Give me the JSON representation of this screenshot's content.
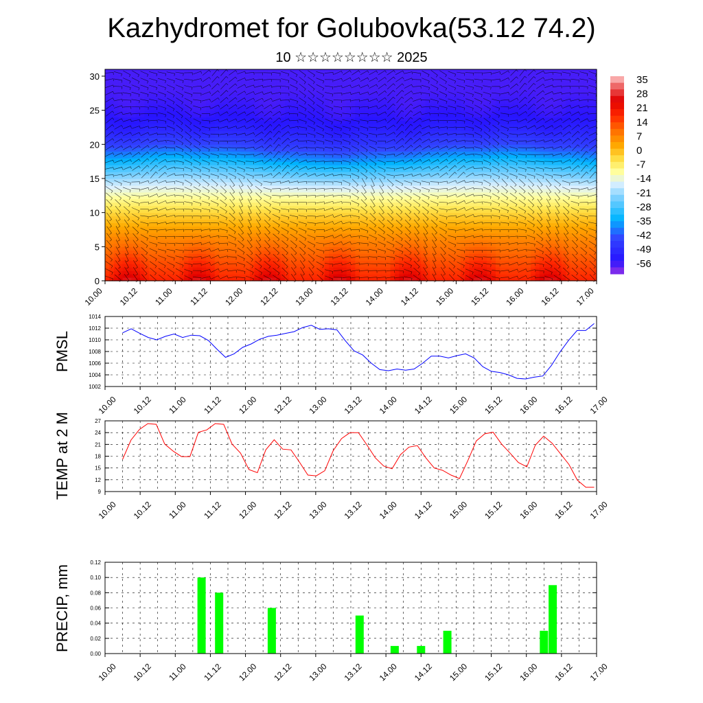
{
  "title": "Kazhydromet for Golubovka(53.12 74.2)",
  "subtitle": "10 ☆☆☆☆☆☆☆☆ 2025",
  "chart_data": [
    {
      "type": "heatmap",
      "title": "",
      "xlabel": "",
      "ylabel": "",
      "x_ticks": [
        "10.00",
        "10.12",
        "11.00",
        "11.12",
        "12.00",
        "12.12",
        "13.00",
        "13.12",
        "14.00",
        "14.12",
        "15.00",
        "15.12",
        "16.00",
        "16.12",
        "17.00"
      ],
      "y_ticks": [
        0,
        5,
        10,
        15,
        20,
        25,
        30
      ],
      "ylim": [
        0,
        31
      ],
      "description_values": {
        "levels": [
          0,
          2,
          4,
          6,
          8,
          10,
          12,
          14,
          16,
          18,
          20,
          22,
          24,
          26,
          28,
          30
        ],
        "profile_day": [
          32,
          24,
          17,
          11,
          5,
          -1,
          -8,
          -16,
          -26,
          -37,
          -47,
          -54,
          -57,
          -58,
          -58,
          -58
        ],
        "profile_night": [
          22,
          18,
          14,
          10,
          5,
          -1,
          -8,
          -16,
          -26,
          -36,
          -46,
          -52,
          -56,
          -57,
          -58,
          -58
        ]
      },
      "colorbar": {
        "labels": [
          35,
          28,
          21,
          14,
          7,
          0,
          -7,
          -14,
          -21,
          -28,
          -35,
          -42,
          -49,
          -56
        ],
        "range": [
          -63,
          42
        ]
      },
      "wind_barbs": true
    },
    {
      "type": "line",
      "ylabel": "PMSL",
      "ylim": [
        1002,
        1014
      ],
      "y_ticks": [
        1002,
        1004,
        1006,
        1008,
        1010,
        1012,
        1014
      ],
      "x_ticks": [
        "10.00",
        "10.12",
        "11.00",
        "11.12",
        "12.00",
        "12.12",
        "13.00",
        "13.12",
        "14.00",
        "14.12",
        "15.00",
        "15.12",
        "16.00",
        "16.12",
        "17.00"
      ],
      "grid": true,
      "series": [
        {
          "color": "#0000ff",
          "values": [
            1011.2,
            1011.9,
            1011.1,
            1010.4,
            1010.0,
            1010.6,
            1011.0,
            1010.4,
            1010.8,
            1010.7,
            1009.9,
            1008.4,
            1007.0,
            1007.6,
            1008.7,
            1009.3,
            1010.1,
            1010.6,
            1010.8,
            1011.1,
            1011.4,
            1012.1,
            1012.5,
            1011.8,
            1011.9,
            1011.7,
            1009.8,
            1008.1,
            1007.4,
            1006.0,
            1004.9,
            1004.7,
            1005.0,
            1004.8,
            1005.0,
            1006.0,
            1007.2,
            1007.2,
            1006.9,
            1007.3,
            1007.6,
            1006.9,
            1005.4,
            1004.6,
            1004.4,
            1004.0,
            1003.4,
            1003.3,
            1003.6,
            1003.8,
            1005.6,
            1007.9,
            1009.9,
            1011.6,
            1011.6,
            1012.8
          ]
        }
      ]
    },
    {
      "type": "line",
      "ylabel": "TEMP at 2 M",
      "ylim": [
        9,
        27
      ],
      "y_ticks": [
        9,
        12,
        15,
        18,
        21,
        24,
        27
      ],
      "x_ticks": [
        "10.00",
        "10.12",
        "11.00",
        "11.12",
        "12.00",
        "12.12",
        "13.00",
        "13.12",
        "14.00",
        "14.12",
        "15.00",
        "15.12",
        "16.00",
        "16.12",
        "17.00"
      ],
      "grid": true,
      "series": [
        {
          "color": "#ff0000",
          "values": [
            17.2,
            22.1,
            24.8,
            26.3,
            26.1,
            21.1,
            19.3,
            17.9,
            17.9,
            24.1,
            24.7,
            26.3,
            26.1,
            21.1,
            18.8,
            14.6,
            13.8,
            19.6,
            22.2,
            19.8,
            19.6,
            16.5,
            13.2,
            13.0,
            14.3,
            19.4,
            22.5,
            24.0,
            24.0,
            20.9,
            17.6,
            15.5,
            14.8,
            18.4,
            20.3,
            20.7,
            17.6,
            15.0,
            14.4,
            13.2,
            12.3,
            16.9,
            21.9,
            23.7,
            24.1,
            21.1,
            18.8,
            16.4,
            15.3,
            20.8,
            23.1,
            21.3,
            18.6,
            15.9,
            11.9,
            10.1,
            10.1
          ]
        }
      ]
    },
    {
      "type": "bar",
      "ylabel": "PRECIP, mm",
      "ylim": [
        0,
        0.12
      ],
      "y_ticks": [
        "0.00",
        "0.02",
        "0.04",
        "0.06",
        "0.08",
        "0.10",
        "0.12"
      ],
      "x_ticks": [
        "10.00",
        "10.12",
        "11.00",
        "11.12",
        "12.00",
        "12.12",
        "13.00",
        "13.12",
        "14.00",
        "14.12",
        "15.00",
        "15.12",
        "16.00",
        "16.12",
        "17.00"
      ],
      "grid": true,
      "bar_color": "#00ff00",
      "bars": [
        {
          "x_hours": 33,
          "value": 0.1
        },
        {
          "x_hours": 39,
          "value": 0.08
        },
        {
          "x_hours": 57,
          "value": 0.06
        },
        {
          "x_hours": 87,
          "value": 0.05
        },
        {
          "x_hours": 99,
          "value": 0.01
        },
        {
          "x_hours": 108,
          "value": 0.01
        },
        {
          "x_hours": 117,
          "value": 0.03
        },
        {
          "x_hours": 150,
          "value": 0.03
        },
        {
          "x_hours": 153,
          "value": 0.09
        }
      ]
    }
  ]
}
